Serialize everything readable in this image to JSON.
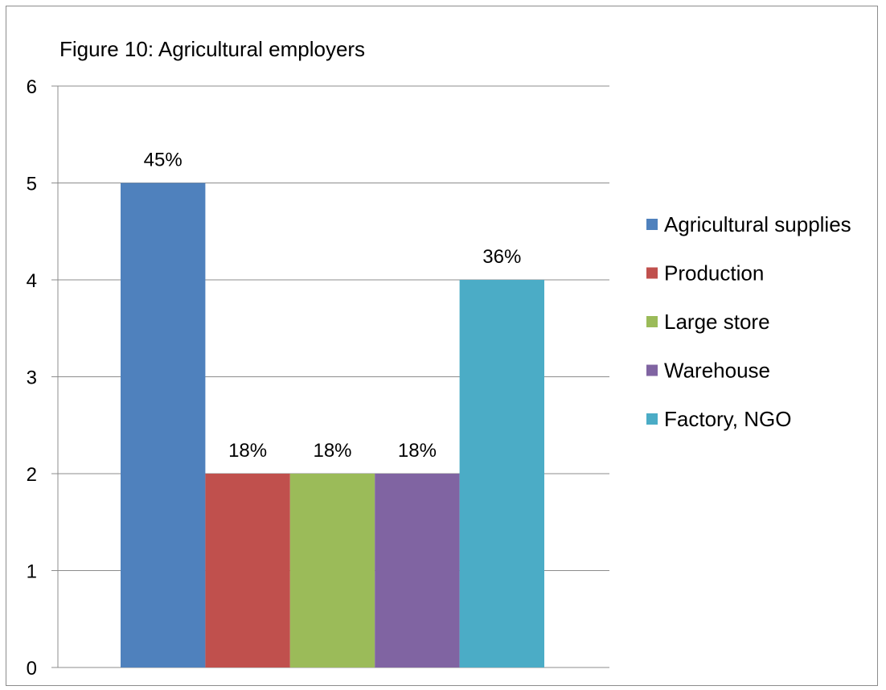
{
  "chart_data": {
    "type": "bar",
    "title": "Figure 10: Agricultural employers",
    "xlabel": "",
    "ylabel": "",
    "ylim": [
      0,
      6
    ],
    "yticks": [
      0,
      1,
      2,
      3,
      4,
      5,
      6
    ],
    "grid": true,
    "legend_position": "right",
    "series": [
      {
        "name": "Agricultural supplies",
        "value": 5,
        "label": "45%",
        "color": "#4f81bd"
      },
      {
        "name": "Production",
        "value": 2,
        "label": "18%",
        "color": "#c0504d"
      },
      {
        "name": "Large store",
        "value": 2,
        "label": "18%",
        "color": "#9bbb59"
      },
      {
        "name": "Warehouse",
        "value": 2,
        "label": "18%",
        "color": "#8064a2"
      },
      {
        "name": "Factory, NGO",
        "value": 4,
        "label": "36%",
        "color": "#4bacc6"
      }
    ]
  }
}
